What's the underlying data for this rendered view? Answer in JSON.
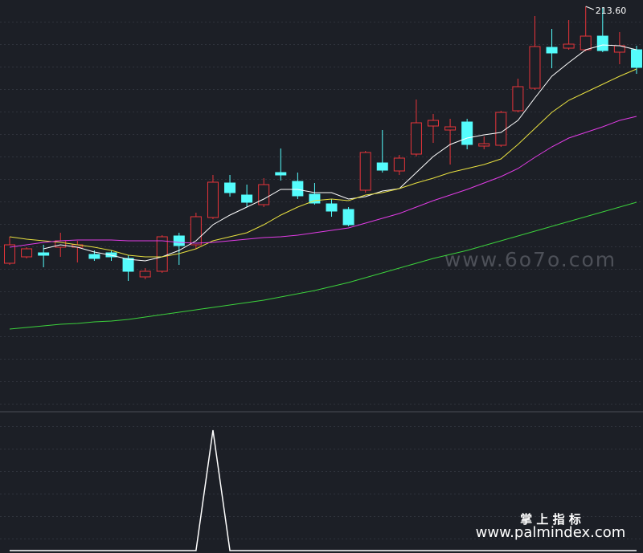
{
  "chart_data": [
    {
      "type": "candlestick",
      "ylim": [
        163.2,
        214.4
      ],
      "open": [
        181.6,
        182.4,
        182.9,
        183.6,
        183.6,
        182.7,
        182.9,
        182.2,
        179.9,
        180.6,
        185.0,
        183.9,
        187.3,
        191.6,
        190.1,
        188.9,
        192.9,
        191.8,
        190.2,
        189.0,
        188.3,
        190.7,
        194.1,
        193.1,
        195.2,
        198.7,
        198.2,
        199.2,
        196.2,
        196.3,
        200.6,
        203.4,
        208.5,
        208.4,
        208.2,
        209.9,
        207.9,
        208.2
      ],
      "high": [
        184.9,
        183.6,
        183.9,
        185.4,
        184.4,
        183.2,
        183.2,
        182.6,
        181.0,
        185.1,
        185.4,
        187.9,
        192.6,
        192.6,
        191.4,
        192.2,
        195.9,
        192.9,
        191.6,
        189.6,
        188.6,
        195.6,
        198.2,
        195.1,
        202.0,
        200.2,
        199.6,
        199.6,
        197.4,
        200.6,
        204.6,
        212.4,
        210.8,
        211.9,
        213.6,
        213.4,
        210.4,
        208.7
      ],
      "low": [
        181.4,
        182.2,
        181.1,
        182.4,
        181.7,
        181.9,
        181.9,
        179.4,
        179.6,
        180.4,
        181.4,
        183.4,
        187.1,
        189.9,
        188.6,
        188.6,
        191.9,
        189.6,
        188.9,
        187.4,
        186.2,
        190.4,
        192.9,
        192.6,
        194.9,
        196.6,
        193.9,
        195.8,
        195.8,
        196.1,
        200.4,
        203.2,
        205.9,
        208.2,
        208.0,
        207.9,
        206.4,
        205.2
      ],
      "close": [
        183.9,
        183.4,
        182.6,
        184.4,
        183.9,
        182.2,
        182.4,
        180.6,
        180.6,
        184.9,
        183.8,
        187.4,
        191.7,
        190.4,
        189.2,
        191.4,
        192.6,
        190.0,
        189.1,
        188.1,
        186.4,
        195.4,
        193.2,
        194.7,
        199.1,
        199.4,
        198.6,
        196.4,
        196.5,
        200.4,
        203.6,
        208.6,
        207.8,
        208.9,
        209.9,
        208.1,
        208.7,
        206.0
      ],
      "up_color": "#e8343a",
      "down_color": "#54fcfc",
      "annotation": "213.60",
      "series": [
        {
          "color": "#ffffff",
          "values": [
            null,
            null,
            183.4,
            183.9,
            183.6,
            183.0,
            182.6,
            182.1,
            181.9,
            182.4,
            183.2,
            184.4,
            186.4,
            187.6,
            188.6,
            189.6,
            190.8,
            190.8,
            190.4,
            190.4,
            189.6,
            189.9,
            190.6,
            190.9,
            192.9,
            194.9,
            196.4,
            197.2,
            197.6,
            197.9,
            199.4,
            202.2,
            204.9,
            206.6,
            208.2,
            208.8,
            208.7,
            208.2
          ]
        },
        {
          "color": "#e8e040",
          "values": [
            184.9,
            184.6,
            184.4,
            184.2,
            183.9,
            183.6,
            183.2,
            182.6,
            182.4,
            182.4,
            182.8,
            183.4,
            184.4,
            184.9,
            185.4,
            186.4,
            187.6,
            188.6,
            189.4,
            189.6,
            189.4,
            190.1,
            190.4,
            190.9,
            191.6,
            192.2,
            192.9,
            193.4,
            193.9,
            194.6,
            196.4,
            198.4,
            200.4,
            201.9,
            202.9,
            203.9,
            204.9,
            205.8
          ]
        },
        {
          "color": "#e23ce6",
          "values": [
            183.6,
            183.9,
            184.2,
            184.4,
            184.5,
            184.5,
            184.5,
            184.4,
            184.4,
            184.4,
            184.2,
            184.1,
            184.2,
            184.4,
            184.6,
            184.8,
            184.9,
            185.1,
            185.4,
            185.7,
            186.0,
            186.6,
            187.2,
            187.8,
            188.6,
            189.4,
            190.1,
            190.8,
            191.6,
            192.4,
            193.4,
            194.8,
            196.1,
            197.2,
            197.9,
            198.6,
            199.4,
            199.9
          ]
        },
        {
          "color": "#3cd23c",
          "values": [
            173.4,
            173.6,
            173.8,
            174.0,
            174.1,
            174.3,
            174.4,
            174.6,
            174.9,
            175.2,
            175.5,
            175.8,
            176.1,
            176.4,
            176.7,
            177.0,
            177.4,
            177.8,
            178.2,
            178.7,
            179.2,
            179.8,
            180.4,
            181.0,
            181.6,
            182.2,
            182.7,
            183.2,
            183.8,
            184.4,
            185.0,
            185.6,
            186.2,
            186.8,
            187.4,
            188.0,
            188.6,
            189.2
          ]
        }
      ]
    },
    {
      "type": "line",
      "ylim": [
        0,
        1
      ],
      "color": "#ffffff",
      "values": [
        0,
        0,
        0,
        0,
        0,
        0,
        0,
        0,
        0,
        0,
        0,
        0,
        1,
        0,
        0,
        0,
        0,
        0,
        0,
        0,
        0,
        0,
        0,
        0,
        0,
        0,
        0,
        0,
        0,
        0,
        0,
        0,
        0,
        0,
        0,
        0,
        0,
        0
      ]
    }
  ],
  "watermarks": [
    "www.6o7o.com",
    "掌 上 指 标",
    "www.palmindex.com"
  ]
}
